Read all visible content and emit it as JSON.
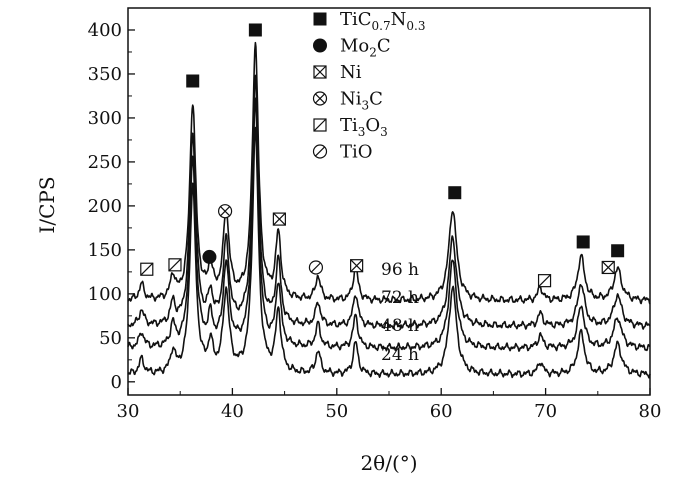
{
  "chart_data": {
    "type": "line",
    "xlabel": "2θ/(°)",
    "ylabel": "I/CPS",
    "xlim": [
      30,
      80
    ],
    "ylim": [
      -15,
      425
    ],
    "x_ticks": [
      30,
      40,
      50,
      60,
      70,
      80
    ],
    "y_ticks": [
      0,
      50,
      100,
      150,
      200,
      250,
      300,
      350,
      400
    ],
    "series": [
      {
        "name": "24 h",
        "baseline": 8,
        "scale": 0.95,
        "label_at": [
          381,
          360
        ]
      },
      {
        "name": "48 h",
        "baseline": 38,
        "scale": 0.96,
        "label_at": [
          381,
          331
        ]
      },
      {
        "name": "72 h",
        "baseline": 63,
        "scale": 0.97,
        "label_at": [
          381,
          303
        ]
      },
      {
        "name": "96 h",
        "baseline": 92,
        "scale": 1.0,
        "label_at": [
          381,
          275
        ]
      }
    ],
    "top_trace_peaks": [
      {
        "x": 31.3,
        "y": 110
      },
      {
        "x": 34.3,
        "y": 117
      },
      {
        "x": 36.2,
        "y": 315
      },
      {
        "x": 37.9,
        "y": 125
      },
      {
        "x": 39.4,
        "y": 188
      },
      {
        "x": 42.2,
        "y": 382
      },
      {
        "x": 44.4,
        "y": 165
      },
      {
        "x": 48.2,
        "y": 119
      },
      {
        "x": 51.8,
        "y": 130
      },
      {
        "x": 61.1,
        "y": 196
      },
      {
        "x": 69.5,
        "y": 107
      },
      {
        "x": 73.4,
        "y": 142
      },
      {
        "x": 76.9,
        "y": 128
      }
    ],
    "phase_markers": [
      {
        "phase": "TiC0.7N0.3",
        "x": 36.2,
        "y": 342
      },
      {
        "phase": "TiC0.7N0.3",
        "x": 42.2,
        "y": 400
      },
      {
        "phase": "TiC0.7N0.3",
        "x": 61.3,
        "y": 215
      },
      {
        "phase": "TiC0.7N0.3",
        "x": 73.6,
        "y": 159
      },
      {
        "phase": "TiC0.7N0.3",
        "x": 76.9,
        "y": 149
      },
      {
        "phase": "Mo2C",
        "x": 37.8,
        "y": 142
      },
      {
        "phase": "Ni3C",
        "x": 39.3,
        "y": 194
      },
      {
        "phase": "Ni",
        "x": 44.5,
        "y": 185
      },
      {
        "phase": "Ni",
        "x": 51.9,
        "y": 132
      },
      {
        "phase": "Ni",
        "x": 76.0,
        "y": 130
      },
      {
        "phase": "Ti3O3",
        "x": 31.8,
        "y": 128
      },
      {
        "phase": "Ti3O3",
        "x": 34.5,
        "y": 133
      },
      {
        "phase": "Ti3O3",
        "x": 69.9,
        "y": 115
      },
      {
        "phase": "TiO",
        "x": 48.0,
        "y": 130
      }
    ],
    "legend": [
      {
        "symbol": "filled-square",
        "main": "TiC",
        "sub1": "0.7",
        "mid": "N",
        "sub2": "0.3",
        "tail": ""
      },
      {
        "symbol": "filled-circle",
        "main": "Mo",
        "sub1": "2",
        "mid": "C",
        "sub2": "",
        "tail": ""
      },
      {
        "symbol": "boxed-x",
        "main": "Ni",
        "sub1": "",
        "mid": "",
        "sub2": "",
        "tail": ""
      },
      {
        "symbol": "circled-x",
        "main": "Ni",
        "sub1": "3",
        "mid": "C",
        "sub2": "",
        "tail": ""
      },
      {
        "symbol": "boxed-slash",
        "main": "Ti",
        "sub1": "3",
        "mid": "O",
        "sub2": "3",
        "tail": ""
      },
      {
        "symbol": "circled-slash",
        "main": "TiO",
        "sub1": "",
        "mid": "",
        "sub2": "",
        "tail": ""
      }
    ],
    "legend_placement": "top-right",
    "grid": false,
    "colors": {
      "line": "#111111",
      "axis": "#111111",
      "background": "#ffffff"
    }
  }
}
